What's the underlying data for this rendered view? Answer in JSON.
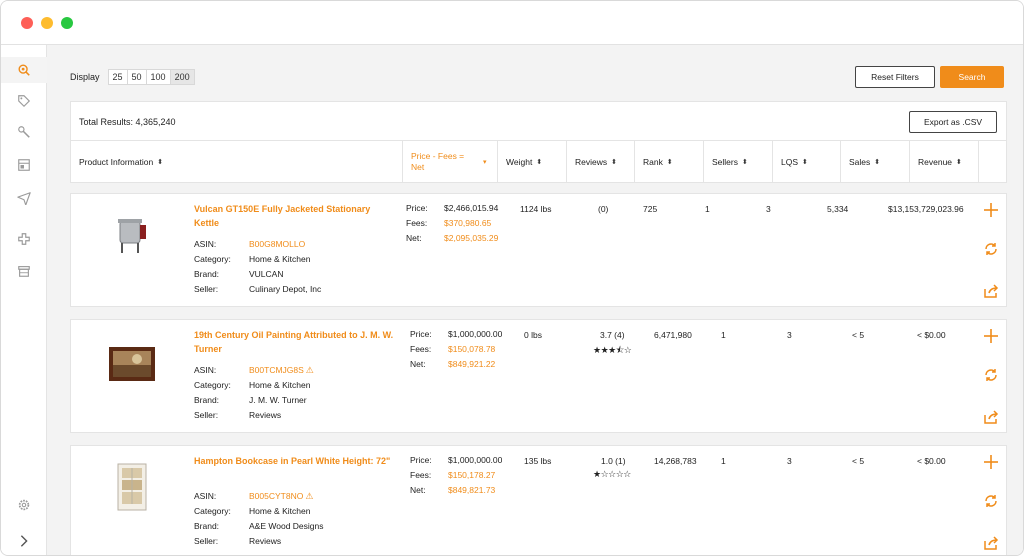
{
  "display": {
    "label": "Display",
    "options": [
      "25",
      "50",
      "100",
      "200"
    ],
    "selected": "200"
  },
  "buttons": {
    "reset": "Reset Filters",
    "search": "Search",
    "export": "Export as .CSV"
  },
  "total": "Total Results:  4,365,240",
  "columns": {
    "product": "Product Information",
    "price": "Price - Fees = Net",
    "weight": "Weight",
    "reviews": "Reviews",
    "rank": "Rank",
    "sellers": "Sellers",
    "lqs": "LQS",
    "sales": "Sales",
    "revenue": "Revenue"
  },
  "labels": {
    "asin": "ASIN:",
    "category": "Category:",
    "brand": "Brand:",
    "seller": "Seller:",
    "price": "Price:",
    "fees": "Fees:",
    "net": "Net:"
  },
  "products": [
    {
      "title": "Vulcan GT150E Fully Jacketed Stationary Kettle",
      "asin": "B00G8MOLLO",
      "category": "Home & Kitchen",
      "brand": "VULCAN",
      "seller": "Culinary Depot, Inc",
      "price": "$2,466,015.94",
      "fees": "$370,980.65",
      "net": "$2,095,035.29",
      "weight": "1124 lbs",
      "reviews": "(0)",
      "rank": "725",
      "sellers": "1",
      "lqs": "3",
      "sales": "5,334",
      "revenue": "$13,153,729,023.96",
      "rating": 0
    },
    {
      "title": "19th Century Oil Painting Attributed to J. M. W. Turner",
      "asin": "B00TCMJG8S",
      "category": "Home & Kitchen",
      "brand": "J. M. W. Turner",
      "seller": "Reviews",
      "price": "$1,000,000.00",
      "fees": "$150,078.78",
      "net": "$849,921.22",
      "weight": "0 lbs",
      "reviews": "3.7 (4)",
      "rank": "6,471,980",
      "sellers": "1",
      "lqs": "3",
      "sales": "< 5",
      "revenue": "< $0.00",
      "rating": 3.5
    },
    {
      "title": "Hampton Bookcase in Pearl White Height: 72\"",
      "asin": "B005CYT8NO",
      "category": "Home & Kitchen",
      "brand": "A&E Wood Designs",
      "seller": "Reviews",
      "price": "$1,000,000.00",
      "fees": "$150,178.27",
      "net": "$849,821.73",
      "weight": "135 lbs",
      "reviews": "1.0 (1)",
      "rank": "14,268,783",
      "sellers": "1",
      "lqs": "3",
      "sales": "< 5",
      "revenue": "< $0.00",
      "rating": 1
    }
  ],
  "icons": {
    "sidebar": [
      "search-icon",
      "tag-icon",
      "wrench-icon",
      "layout-icon",
      "paper-plane-icon",
      "plus-cross-icon",
      "store-icon",
      "settings-icon",
      "chevron-right-icon"
    ],
    "row_actions": [
      "add-icon",
      "refresh-icon",
      "share-icon"
    ]
  },
  "colors": {
    "accent": "#f08c1a",
    "dot_red": "#fe5f57",
    "dot_yellow": "#febc2e",
    "dot_green": "#28c840"
  }
}
